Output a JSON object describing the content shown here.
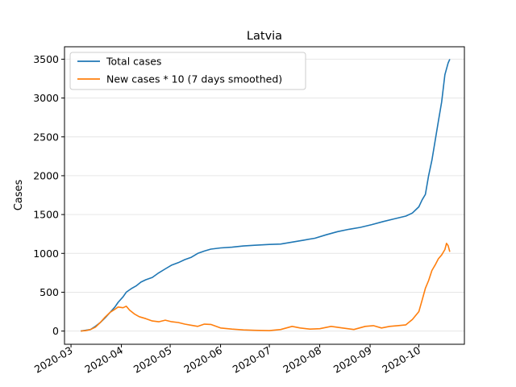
{
  "chart_data": {
    "type": "line",
    "title": "Latvia",
    "xlabel": "",
    "ylabel": "Cases",
    "x_tick_labels": [
      "2020-03",
      "2020-04",
      "2020-05",
      "2020-06",
      "2020-07",
      "2020-08",
      "2020-09",
      "2020-10"
    ],
    "x_tick_dates": [
      "2020-03-01",
      "2020-04-01",
      "2020-05-01",
      "2020-06-01",
      "2020-07-01",
      "2020-08-01",
      "2020-09-01",
      "2020-10-01"
    ],
    "xlim": [
      "2020-02-26",
      "2020-10-29"
    ],
    "y_ticks": [
      0,
      500,
      1000,
      1500,
      2000,
      2500,
      3000,
      3500
    ],
    "ylim": [
      -170,
      3660
    ],
    "grid": "horizontal",
    "legend_position": "upper-left",
    "series": [
      {
        "name": "Total cases",
        "color": "#1f77b4",
        "points": [
          [
            "2020-03-07",
            0
          ],
          [
            "2020-03-10",
            10
          ],
          [
            "2020-03-13",
            20
          ],
          [
            "2020-03-16",
            60
          ],
          [
            "2020-03-19",
            110
          ],
          [
            "2020-03-22",
            170
          ],
          [
            "2020-03-25",
            240
          ],
          [
            "2020-03-28",
            310
          ],
          [
            "2020-03-30",
            370
          ],
          [
            "2020-04-02",
            440
          ],
          [
            "2020-04-04",
            500
          ],
          [
            "2020-04-07",
            545
          ],
          [
            "2020-04-10",
            580
          ],
          [
            "2020-04-13",
            630
          ],
          [
            "2020-04-16",
            660
          ],
          [
            "2020-04-20",
            690
          ],
          [
            "2020-04-24",
            750
          ],
          [
            "2020-04-28",
            800
          ],
          [
            "2020-05-02",
            850
          ],
          [
            "2020-05-06",
            880
          ],
          [
            "2020-05-10",
            920
          ],
          [
            "2020-05-14",
            950
          ],
          [
            "2020-05-18",
            1000
          ],
          [
            "2020-05-22",
            1030
          ],
          [
            "2020-05-26",
            1055
          ],
          [
            "2020-06-01",
            1070
          ],
          [
            "2020-06-08",
            1080
          ],
          [
            "2020-06-15",
            1095
          ],
          [
            "2020-06-22",
            1105
          ],
          [
            "2020-07-01",
            1115
          ],
          [
            "2020-07-08",
            1120
          ],
          [
            "2020-07-15",
            1145
          ],
          [
            "2020-07-22",
            1170
          ],
          [
            "2020-07-29",
            1195
          ],
          [
            "2020-08-05",
            1240
          ],
          [
            "2020-08-12",
            1280
          ],
          [
            "2020-08-19",
            1310
          ],
          [
            "2020-08-26",
            1335
          ],
          [
            "2020-09-02",
            1370
          ],
          [
            "2020-09-09",
            1410
          ],
          [
            "2020-09-16",
            1445
          ],
          [
            "2020-09-23",
            1480
          ],
          [
            "2020-09-27",
            1520
          ],
          [
            "2020-10-01",
            1600
          ],
          [
            "2020-10-03",
            1690
          ],
          [
            "2020-10-05",
            1760
          ],
          [
            "2020-10-07",
            2000
          ],
          [
            "2020-10-09",
            2200
          ],
          [
            "2020-10-11",
            2450
          ],
          [
            "2020-10-13",
            2700
          ],
          [
            "2020-10-15",
            2950
          ],
          [
            "2020-10-17",
            3300
          ],
          [
            "2020-10-19",
            3450
          ],
          [
            "2020-10-20",
            3500
          ]
        ]
      },
      {
        "name": "New cases * 10 (7 days smoothed)",
        "color": "#ff7f0e",
        "points": [
          [
            "2020-03-07",
            0
          ],
          [
            "2020-03-10",
            5
          ],
          [
            "2020-03-13",
            20
          ],
          [
            "2020-03-16",
            50
          ],
          [
            "2020-03-19",
            110
          ],
          [
            "2020-03-22",
            180
          ],
          [
            "2020-03-25",
            240
          ],
          [
            "2020-03-28",
            280
          ],
          [
            "2020-03-30",
            310
          ],
          [
            "2020-04-02",
            300
          ],
          [
            "2020-04-04",
            320
          ],
          [
            "2020-04-06",
            270
          ],
          [
            "2020-04-09",
            220
          ],
          [
            "2020-04-12",
            185
          ],
          [
            "2020-04-16",
            160
          ],
          [
            "2020-04-20",
            130
          ],
          [
            "2020-04-24",
            120
          ],
          [
            "2020-04-28",
            140
          ],
          [
            "2020-05-02",
            120
          ],
          [
            "2020-05-06",
            110
          ],
          [
            "2020-05-10",
            90
          ],
          [
            "2020-05-14",
            75
          ],
          [
            "2020-05-18",
            60
          ],
          [
            "2020-05-22",
            90
          ],
          [
            "2020-05-26",
            85
          ],
          [
            "2020-06-01",
            40
          ],
          [
            "2020-06-08",
            25
          ],
          [
            "2020-06-15",
            15
          ],
          [
            "2020-06-22",
            10
          ],
          [
            "2020-07-01",
            5
          ],
          [
            "2020-07-08",
            20
          ],
          [
            "2020-07-15",
            60
          ],
          [
            "2020-07-20",
            40
          ],
          [
            "2020-07-26",
            25
          ],
          [
            "2020-08-01",
            30
          ],
          [
            "2020-08-08",
            60
          ],
          [
            "2020-08-15",
            40
          ],
          [
            "2020-08-22",
            20
          ],
          [
            "2020-08-29",
            60
          ],
          [
            "2020-09-03",
            70
          ],
          [
            "2020-09-08",
            40
          ],
          [
            "2020-09-13",
            60
          ],
          [
            "2020-09-18",
            70
          ],
          [
            "2020-09-23",
            80
          ],
          [
            "2020-09-27",
            150
          ],
          [
            "2020-10-01",
            250
          ],
          [
            "2020-10-03",
            400
          ],
          [
            "2020-10-05",
            550
          ],
          [
            "2020-10-07",
            650
          ],
          [
            "2020-10-09",
            780
          ],
          [
            "2020-10-11",
            850
          ],
          [
            "2020-10-13",
            930
          ],
          [
            "2020-10-15",
            980
          ],
          [
            "2020-10-17",
            1050
          ],
          [
            "2020-10-18",
            1130
          ],
          [
            "2020-10-19",
            1100
          ],
          [
            "2020-10-20",
            1020
          ]
        ]
      }
    ]
  }
}
